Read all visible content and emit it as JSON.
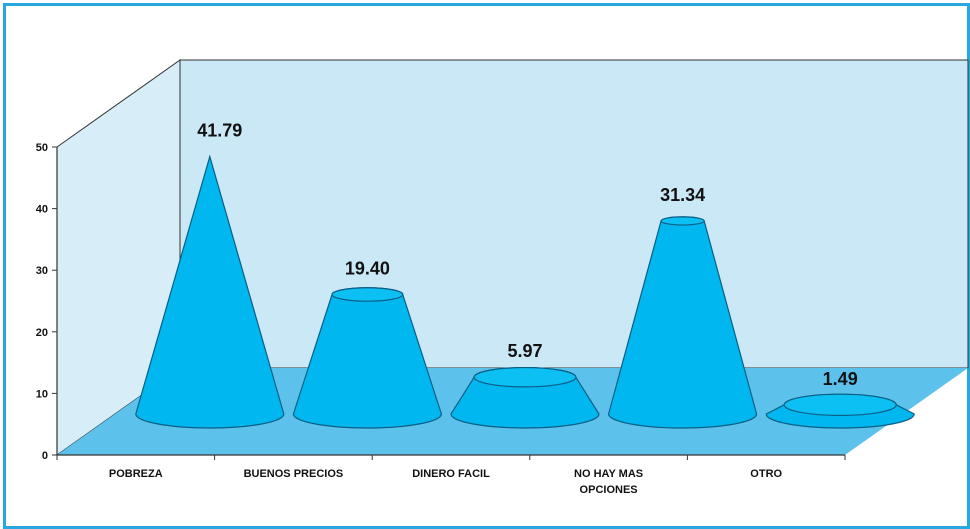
{
  "chart_data": {
    "type": "bar",
    "shape": "3d-cone",
    "categories": [
      "POBREZA",
      "BUENOS PRECIOS",
      "DINERO FACIL",
      "NO HAY MAS OPCIONES",
      "OTRO"
    ],
    "category_lines": [
      [
        "POBREZA"
      ],
      [
        "BUENOS PRECIOS"
      ],
      [
        "DINERO FACIL"
      ],
      [
        "NO HAY MAS",
        "OPCIONES"
      ],
      [
        "OTRO"
      ]
    ],
    "values": [
      41.79,
      19.4,
      5.97,
      31.34,
      1.49
    ],
    "value_labels": [
      "41.79",
      "19.40",
      "5.97",
      "31.34",
      "1.49"
    ],
    "yticks": [
      0,
      10,
      20,
      30,
      40,
      50
    ],
    "ylim": [
      0,
      50
    ],
    "title": "",
    "xlabel": "",
    "ylabel": "",
    "legend": "none",
    "grid": false,
    "colors": {
      "frame_border": "#29a8e0",
      "back_wall": "#cbe8f7",
      "side_wall": "#d7eef9",
      "floor": "#5cc2ec",
      "cone_fill": "#00b7ef",
      "cone_top": "#0cc0f4",
      "cone_stroke": "#0a5f85",
      "axis": "#333333"
    }
  }
}
